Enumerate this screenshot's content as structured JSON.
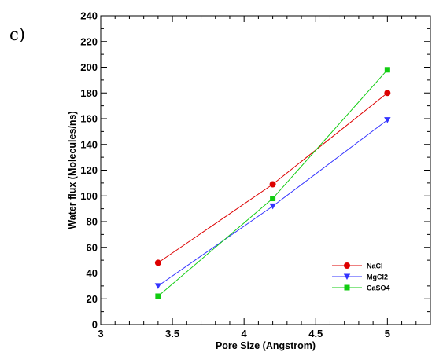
{
  "panel_label": "c)",
  "chart_data": {
    "type": "line",
    "title": "",
    "xlabel": "Pore Size (Angstrom)",
    "ylabel": "Water flux (Molecules/ns)",
    "xlim": [
      3,
      5.3
    ],
    "ylim": [
      0,
      240
    ],
    "xticks": [
      3,
      3.5,
      4,
      4.5,
      5
    ],
    "xtick_labels": [
      "3",
      "3.5",
      "4",
      "4.5",
      "5"
    ],
    "yticks": [
      0,
      20,
      40,
      60,
      80,
      100,
      120,
      140,
      160,
      180,
      200,
      220,
      240
    ],
    "ytick_labels": [
      "0",
      "20",
      "40",
      "60",
      "80",
      "100",
      "120",
      "140",
      "160",
      "180",
      "200",
      "220",
      "240"
    ],
    "grid": false,
    "legend_position": "bottom-right",
    "x": [
      3.4,
      4.2,
      5.0
    ],
    "series": [
      {
        "name": "NaCl",
        "values": [
          48,
          109,
          180
        ],
        "color": "#dd0000",
        "marker": "circle"
      },
      {
        "name": "MgCl2",
        "values": [
          30,
          92,
          159
        ],
        "color": "#3333ff",
        "marker": "triangle-down"
      },
      {
        "name": "CaSO4",
        "values": [
          22,
          98,
          198
        ],
        "color": "#11cc11",
        "marker": "square"
      }
    ]
  }
}
